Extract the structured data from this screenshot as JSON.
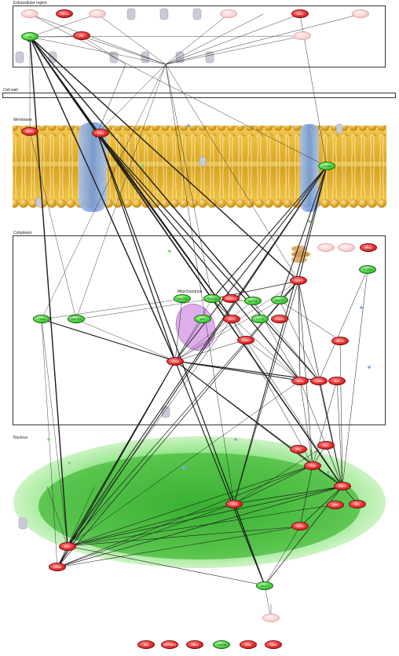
{
  "regions": {
    "extracellular": "Extracellular region",
    "cell_wall": "Cell wall",
    "membrane": "Membrane",
    "cytoplasm": "Cytoplasm",
    "mitochondrion": "Mitochondrion",
    "nucleus": "Nucleus"
  },
  "colors": {
    "upregulated": "#e83030",
    "downregulated": "#46d43a",
    "membrane_lipid": "#d4a020",
    "channel": "#7fa6e0",
    "nucleus": "#3ec83a",
    "mitochondrion": "#c77be0"
  },
  "nodes": [
    {
      "id": "n01",
      "label": "",
      "state": "faded"
    },
    {
      "id": "n02",
      "label": "CXCL8",
      "state": "up"
    },
    {
      "id": "n03",
      "label": "",
      "state": "faded"
    },
    {
      "id": "n04",
      "label": "",
      "state": "faded"
    },
    {
      "id": "n05",
      "label": "CCL2",
      "state": "up"
    },
    {
      "id": "n06",
      "label": "",
      "state": "faded"
    },
    {
      "id": "n07",
      "label": "IL6",
      "state": "down"
    },
    {
      "id": "n08",
      "label": "TNF",
      "state": "up"
    },
    {
      "id": "n09",
      "label": "",
      "state": "faded"
    },
    {
      "id": "n10",
      "label": "EGFR",
      "state": "up"
    },
    {
      "id": "n11",
      "label": "TLR4",
      "state": "up"
    },
    {
      "id": "n12",
      "label": "ITGA5",
      "state": "down"
    },
    {
      "id": "n13",
      "label": "",
      "state": "faded"
    },
    {
      "id": "n14",
      "label": "",
      "state": "faded"
    },
    {
      "id": "n15",
      "label": "BCL2",
      "state": "up"
    },
    {
      "id": "n16",
      "label": "CASP3",
      "state": "up"
    },
    {
      "id": "n17",
      "label": "MAP2K1",
      "state": "down"
    },
    {
      "id": "n18",
      "label": "PRKCA",
      "state": "down"
    },
    {
      "id": "n19",
      "label": "CDKN1A",
      "state": "up"
    },
    {
      "id": "n20",
      "label": "MAPK1",
      "state": "down"
    },
    {
      "id": "n21",
      "label": "MAPK3",
      "state": "down"
    },
    {
      "id": "n22",
      "label": "EDN1",
      "state": "down"
    },
    {
      "id": "n23",
      "label": "HMOX1",
      "state": "down"
    },
    {
      "id": "n24",
      "label": "BAX",
      "state": "down"
    },
    {
      "id": "n25",
      "label": "AKT1",
      "state": "up"
    },
    {
      "id": "n26",
      "label": "CYCS",
      "state": "down"
    },
    {
      "id": "n27",
      "label": "PTGS2",
      "state": "up"
    },
    {
      "id": "n28",
      "label": "MDM2",
      "state": "up"
    },
    {
      "id": "n29",
      "label": "HSPA1",
      "state": "up"
    },
    {
      "id": "n30",
      "label": "PPARG",
      "state": "down"
    },
    {
      "id": "n31",
      "label": "NFKB1",
      "state": "up"
    },
    {
      "id": "n32",
      "label": "RELA",
      "state": "up"
    },
    {
      "id": "n33",
      "label": "CCND1",
      "state": "up"
    },
    {
      "id": "n34",
      "label": "JUN",
      "state": "up"
    },
    {
      "id": "n35",
      "label": "FOS",
      "state": "up"
    },
    {
      "id": "n36",
      "label": "MYC",
      "state": "up"
    },
    {
      "id": "n37",
      "label": "TP53",
      "state": "up"
    },
    {
      "id": "n38",
      "label": "STAT3",
      "state": "up"
    },
    {
      "id": "n39",
      "label": "EGR1",
      "state": "up"
    },
    {
      "id": "n40",
      "label": "ATF3",
      "state": "up"
    },
    {
      "id": "n41",
      "label": "SP1",
      "state": "up"
    },
    {
      "id": "n42",
      "label": "HIF1A",
      "state": "up"
    },
    {
      "id": "n43",
      "label": "E2F1",
      "state": "up"
    },
    {
      "id": "n44",
      "label": "CREB1",
      "state": "up"
    },
    {
      "id": "n45",
      "label": "NR3C1",
      "state": "down"
    },
    {
      "id": "n46",
      "label": "",
      "state": "faded"
    }
  ],
  "legend": [
    {
      "label": "FAS",
      "state": "up"
    },
    {
      "label": "SERPINE1",
      "state": "up"
    },
    {
      "label": "CDK4",
      "state": "up"
    },
    {
      "label": "CEBPB",
      "state": "down"
    },
    {
      "label": "IRS1",
      "state": "up"
    },
    {
      "label": "CD44",
      "state": "up"
    }
  ]
}
